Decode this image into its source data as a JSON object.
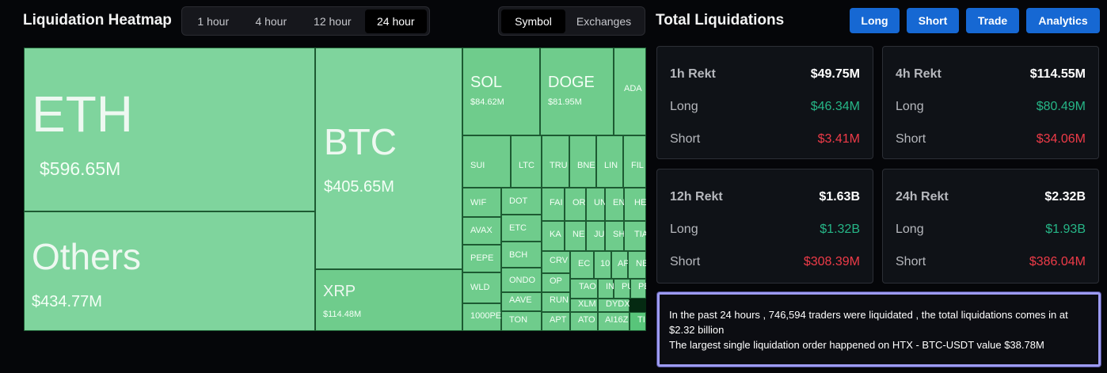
{
  "heatmap": {
    "title": "Liquidation Heatmap",
    "time_ranges": [
      "1 hour",
      "4 hour",
      "12 hour",
      "24 hour"
    ],
    "selected_range": "24 hour",
    "view_modes": [
      "Symbol",
      "Exchanges"
    ],
    "selected_view": "Symbol",
    "tiles": [
      {
        "symbol": "ETH",
        "value": "$596.65M"
      },
      {
        "symbol": "Others",
        "value": "$434.77M"
      },
      {
        "symbol": "BTC",
        "value": "$405.65M"
      },
      {
        "symbol": "XRP",
        "value": "$114.48M"
      },
      {
        "symbol": "SOL",
        "value": "$84.62M"
      },
      {
        "symbol": "DOGE",
        "value": "$81.95M"
      },
      {
        "symbol": "ADA",
        "value": ""
      },
      {
        "symbol": "SUI",
        "value": ""
      },
      {
        "symbol": "LTC",
        "value": ""
      },
      {
        "symbol": "TRU",
        "value": ""
      },
      {
        "symbol": "BNE",
        "value": ""
      },
      {
        "symbol": "LIN",
        "value": ""
      },
      {
        "symbol": "FIL",
        "value": ""
      },
      {
        "symbol": "WIF",
        "value": ""
      },
      {
        "symbol": "DOT",
        "value": ""
      },
      {
        "symbol": "FAI",
        "value": ""
      },
      {
        "symbol": "OR",
        "value": ""
      },
      {
        "symbol": "UN",
        "value": ""
      },
      {
        "symbol": "EN",
        "value": ""
      },
      {
        "symbol": "HE",
        "value": ""
      },
      {
        "symbol": "AVAX",
        "value": ""
      },
      {
        "symbol": "ETC",
        "value": ""
      },
      {
        "symbol": "KA",
        "value": ""
      },
      {
        "symbol": "NE",
        "value": ""
      },
      {
        "symbol": "JU",
        "value": ""
      },
      {
        "symbol": "SH",
        "value": ""
      },
      {
        "symbol": "TIA",
        "value": ""
      },
      {
        "symbol": "PEPE",
        "value": ""
      },
      {
        "symbol": "BCH",
        "value": ""
      },
      {
        "symbol": "CRV",
        "value": ""
      },
      {
        "symbol": "EC",
        "value": ""
      },
      {
        "symbol": "10",
        "value": ""
      },
      {
        "symbol": "AP",
        "value": ""
      },
      {
        "symbol": "NE",
        "value": ""
      },
      {
        "symbol": "WLD",
        "value": ""
      },
      {
        "symbol": "ONDO",
        "value": ""
      },
      {
        "symbol": "OP",
        "value": ""
      },
      {
        "symbol": "TAO",
        "value": ""
      },
      {
        "symbol": "IN",
        "value": ""
      },
      {
        "symbol": "PU",
        "value": ""
      },
      {
        "symbol": "PE",
        "value": ""
      },
      {
        "symbol": "RUN",
        "value": ""
      },
      {
        "symbol": "XLM",
        "value": ""
      },
      {
        "symbol": "AAVE",
        "value": ""
      },
      {
        "symbol": "DYDX",
        "value": ""
      },
      {
        "symbol": "1000PE",
        "value": ""
      },
      {
        "symbol": "TON",
        "value": ""
      },
      {
        "symbol": "APT",
        "value": ""
      },
      {
        "symbol": "ATO",
        "value": ""
      },
      {
        "symbol": "AI16Z",
        "value": ""
      },
      {
        "symbol": "TI",
        "value": ""
      }
    ]
  },
  "total": {
    "title": "Total Liquidations",
    "actions": [
      "Long",
      "Short",
      "Trade",
      "Analytics"
    ],
    "long_label": "Long",
    "short_label": "Short",
    "cards": [
      {
        "label": "1h Rekt",
        "total": "$49.75M",
        "long": "$46.34M",
        "short": "$3.41M"
      },
      {
        "label": "4h Rekt",
        "total": "$114.55M",
        "long": "$80.49M",
        "short": "$34.06M"
      },
      {
        "label": "12h Rekt",
        "total": "$1.63B",
        "long": "$1.32B",
        "short": "$308.39M"
      },
      {
        "label": "24h Rekt",
        "total": "$2.32B",
        "long": "$1.93B",
        "short": "$386.04M"
      }
    ],
    "summary_line1": "In the past 24 hours , 746,594 traders were liquidated , the total liquidations comes in at $2.32 billion",
    "summary_line2": "The largest single liquidation order happened on HTX - BTC-USDT value $38.78M"
  },
  "colors": {
    "long": "#26b687",
    "short": "#ee3b48",
    "accent": "#1668d3",
    "tile_light": "#7fd49d",
    "tile_mid": "#6fcc8c",
    "tile_dark": "#58c57a"
  }
}
